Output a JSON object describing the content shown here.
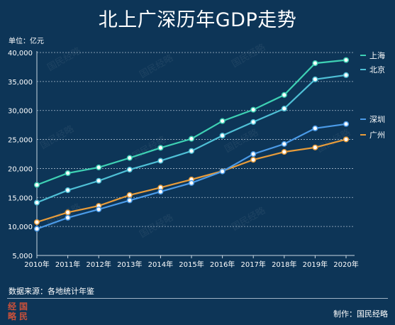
{
  "header": {
    "title": "北上广深历年GDP走势",
    "unit": "单位：亿元"
  },
  "footer": {
    "source": "数据来源：各地统计年鉴",
    "credit": "制作：国民经略",
    "logo_chars": [
      "经",
      "国",
      "略",
      "民"
    ]
  },
  "watermark_text": "国民经略",
  "colors": {
    "background": "#0d3557",
    "上海": "#3ed1b4",
    "北京": "#4fc0d6",
    "深圳": "#4b9be8",
    "广州": "#e89c3a"
  },
  "chart_data": {
    "type": "line",
    "title": "北上广深历年GDP走势",
    "ylabel": "单位：亿元",
    "xlabel": "",
    "ylim": [
      5000,
      40000
    ],
    "yticks": [
      "5,000",
      "10,000",
      "15,000",
      "20,000",
      "25,000",
      "30,000",
      "35,000",
      "40,000"
    ],
    "categories": [
      "2010年",
      "2011年",
      "2012年",
      "2013年",
      "2014年",
      "2015年",
      "2016年",
      "2017年",
      "2018年",
      "2019年",
      "2020年"
    ],
    "grid": true,
    "legend_position": "right",
    "series": [
      {
        "name": "上海",
        "color": "#3ed1b4",
        "values": [
          17166,
          19196,
          20182,
          21818,
          23568,
          25123,
          28179,
          30133,
          32680,
          38155,
          38701
        ]
      },
      {
        "name": "北京",
        "color": "#4fc0d6",
        "values": [
          14114,
          16252,
          17879,
          19801,
          21331,
          23015,
          25669,
          28015,
          30320,
          35371,
          36103
        ]
      },
      {
        "name": "深圳",
        "color": "#4b9be8",
        "values": [
          9582,
          11506,
          12950,
          14500,
          16002,
          17503,
          19493,
          22490,
          24222,
          26927,
          27670
        ]
      },
      {
        "name": "广州",
        "color": "#e89c3a",
        "values": [
          10748,
          12423,
          13551,
          15420,
          16707,
          18100,
          19547,
          21503,
          22859,
          23629,
          25019
        ]
      }
    ]
  }
}
